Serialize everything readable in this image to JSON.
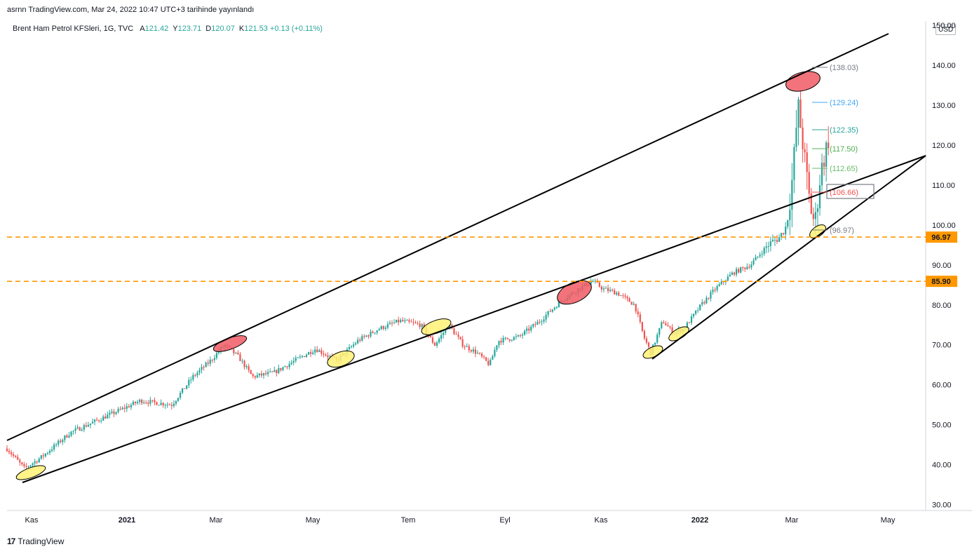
{
  "header": {
    "published": "asrnn TradingView.com, Mar 24, 2022 10:47 UTC+3 tarihinde yayınlandı",
    "symbol": "Brent Ham Petrol KFSleri, 1G, TVC",
    "ohlc": [
      {
        "key": "A",
        "value": "121.42"
      },
      {
        "key": "Y",
        "value": "123.71"
      },
      {
        "key": "D",
        "value": "120.07"
      },
      {
        "key": "K",
        "value": "121.53"
      }
    ],
    "change": "+0.13 (+0.11%)"
  },
  "currency": "USD",
  "footer": {
    "logo": "17",
    "brand": "TradingView"
  },
  "colors": {
    "up": "#26a69a",
    "down": "#ef5350",
    "hline": "#ff9800",
    "trend": "#000000",
    "red_zone": "#f05a64",
    "yellow_zone": "#fff176"
  },
  "chart_data": {
    "type": "candlestick",
    "yaxis": {
      "ticks": [
        "30.00",
        "40.00",
        "50.00",
        "60.00",
        "70.00",
        "80.00",
        "90.00",
        "100.00",
        "110.00",
        "120.00",
        "130.00",
        "140.00",
        "150.00"
      ],
      "range": [
        28,
        150
      ]
    },
    "xaxis": {
      "ticks": [
        {
          "label": "Kas",
          "year": false
        },
        {
          "label": "2021",
          "year": true
        },
        {
          "label": "Mar",
          "year": false
        },
        {
          "label": "May",
          "year": false
        },
        {
          "label": "Tem",
          "year": false
        },
        {
          "label": "Eyl",
          "year": false
        },
        {
          "label": "Kas",
          "year": false
        },
        {
          "label": "2022",
          "year": true
        },
        {
          "label": "Mar",
          "year": false
        },
        {
          "label": "May",
          "year": false
        }
      ]
    },
    "horizontal_levels": [
      {
        "value": 96.97,
        "label": "96.97"
      },
      {
        "value": 85.9,
        "label": "85.90"
      }
    ],
    "annotations": [
      {
        "label": "(138.03)",
        "value": 138.03,
        "color": "#787b86"
      },
      {
        "label": "(129.24)",
        "value": 129.24,
        "color": "#42a5f5"
      },
      {
        "label": "(122.35)",
        "value": 122.35,
        "color": "#26a69a"
      },
      {
        "label": "(117.50)",
        "value": 117.5,
        "color": "#4caf50"
      },
      {
        "label": "(112.65)",
        "value": 112.65,
        "color": "#66bb6a"
      },
      {
        "label": "(106.66)",
        "value": 106.66,
        "color": "#ef5350"
      },
      {
        "label": "(96.97)",
        "value": 96.97,
        "color": "#787b86"
      }
    ]
  }
}
